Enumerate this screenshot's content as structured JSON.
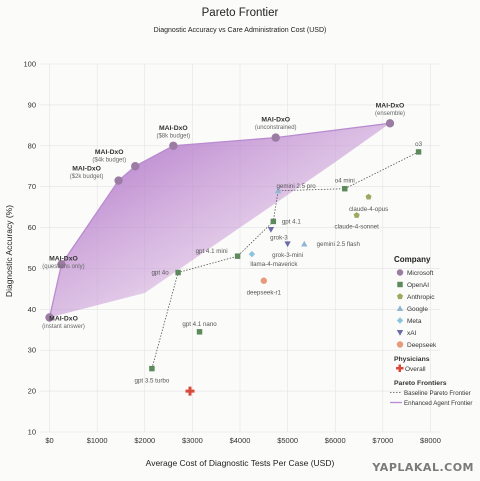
{
  "chart_data": {
    "type": "scatter",
    "title": "Pareto Frontier",
    "subtitle": "Diagnostic Accuracy vs Care Administration Cost (USD)",
    "xlabel": "Average Cost of Diagnostic Tests Per Case (USD)",
    "ylabel": "Diagnostic Accuracy (%)",
    "xlim": [
      -200,
      8200
    ],
    "ylim": [
      10,
      100
    ],
    "xticks": [
      0,
      1000,
      2000,
      3000,
      4000,
      5000,
      6000,
      7000,
      8000
    ],
    "xtick_labels": [
      "$0",
      "$1000",
      "$2000",
      "$3000",
      "$4000",
      "$5000",
      "$6000",
      "$7000",
      "$8000"
    ],
    "yticks": [
      10,
      20,
      30,
      40,
      50,
      60,
      70,
      80,
      90,
      100
    ],
    "grid": true,
    "legend_position": "right",
    "companies": [
      {
        "name": "Microsoft",
        "marker": "circle",
        "color": "#9b7ca3"
      },
      {
        "name": "OpenAI",
        "marker": "square",
        "color": "#5c8a5c"
      },
      {
        "name": "Anthropic",
        "marker": "pentagon",
        "color": "#a0a85f"
      },
      {
        "name": "Google",
        "marker": "triangle-up",
        "color": "#8fb8ce"
      },
      {
        "name": "Meta",
        "marker": "diamond",
        "color": "#8cc4df"
      },
      {
        "name": "xAI",
        "marker": "triangle-down",
        "color": "#6c6ca8"
      },
      {
        "name": "Deepseek",
        "marker": "circle",
        "color": "#e89a7c"
      }
    ],
    "points": [
      {
        "label": "MAI-DxO",
        "sublabel": "(instant answer)",
        "x": 0,
        "y": 38,
        "company": "Microsoft",
        "bold": true,
        "lx": 14,
        "ly": 3
      },
      {
        "label": "MAI-DxO",
        "sublabel": "(questions only)",
        "x": 250,
        "y": 51,
        "company": "Microsoft",
        "bold": true,
        "lx": 2,
        "ly": -4
      },
      {
        "label": "MAI-DxO",
        "sublabel": "($2k budget)",
        "x": 1450,
        "y": 71.5,
        "company": "Microsoft",
        "bold": true,
        "lx": -32,
        "ly": -10
      },
      {
        "label": "MAI-DxO",
        "sublabel": "($4k budget)",
        "x": 1800,
        "y": 75,
        "company": "Microsoft",
        "bold": true,
        "lx": -26,
        "ly": -12
      },
      {
        "label": "MAI-DxO",
        "sublabel": "($8k budget)",
        "x": 2600,
        "y": 80,
        "company": "Microsoft",
        "bold": true,
        "lx": 0,
        "ly": -16
      },
      {
        "label": "MAI-DxO",
        "sublabel": "(unconstrained)",
        "x": 4750,
        "y": 82,
        "company": "Microsoft",
        "bold": true,
        "lx": 0,
        "ly": -16
      },
      {
        "label": "MAI-DxO",
        "sublabel": "(ensemble)",
        "x": 7150,
        "y": 85.5,
        "company": "Microsoft",
        "bold": true,
        "lx": 0,
        "ly": -16
      },
      {
        "label": "gpt 3.5 turbo",
        "x": 2150,
        "y": 25.5,
        "company": "OpenAI",
        "lx": 0,
        "ly": 12
      },
      {
        "label": "gpt 4o",
        "x": 2700,
        "y": 49,
        "company": "OpenAI",
        "lx": -18,
        "ly": 0
      },
      {
        "label": "gpt 4.1 nano",
        "x": 3150,
        "y": 34.5,
        "company": "OpenAI",
        "lx": 0,
        "ly": -8
      },
      {
        "label": "gpt 4.1 mini",
        "x": 3950,
        "y": 53,
        "company": "OpenAI",
        "lx": -26,
        "ly": -5
      },
      {
        "label": "gpt 4.1",
        "x": 4700,
        "y": 61.5,
        "company": "OpenAI",
        "lx": 18,
        "ly": 0
      },
      {
        "label": "o4 mini",
        "x": 6200,
        "y": 69.5,
        "company": "OpenAI",
        "lx": 0,
        "ly": -8
      },
      {
        "label": "o3",
        "x": 7750,
        "y": 78.5,
        "company": "OpenAI",
        "lx": 0,
        "ly": -8
      },
      {
        "label": "claude-4-opus",
        "x": 6700,
        "y": 67.5,
        "company": "Anthropic",
        "lx": 0,
        "ly": 12
      },
      {
        "label": "claude-4-sonnet",
        "x": 6450,
        "y": 63,
        "company": "Anthropic",
        "lx": 0,
        "ly": 11
      },
      {
        "label": "gemini 2.5 pro",
        "x": 4800,
        "y": 69,
        "company": "Google",
        "lx": 18,
        "ly": -5
      },
      {
        "label": "gemini 2.5 flash",
        "x": 5350,
        "y": 56,
        "company": "Google",
        "lx": 34,
        "ly": 0
      },
      {
        "label": "llama-4-maverick",
        "x": 4250,
        "y": 53.5,
        "company": "Meta",
        "lx": 22,
        "ly": 10
      },
      {
        "label": "grok-3",
        "x": 4650,
        "y": 59.5,
        "company": "xAI",
        "lx": 8,
        "ly": 8
      },
      {
        "label": "grok-3-mini",
        "x": 5000,
        "y": 56,
        "company": "xAI",
        "lx": 0,
        "ly": 11
      },
      {
        "label": "deepseek-r1",
        "x": 4500,
        "y": 47,
        "company": "Deepseek",
        "lx": 0,
        "ly": 12
      }
    ],
    "physicians": {
      "label": "Overall",
      "x": 2950,
      "y": 20,
      "color": "#d94a3a"
    },
    "baseline_frontier": [
      [
        2150,
        25.5
      ],
      [
        2700,
        49
      ],
      [
        3950,
        53
      ],
      [
        4700,
        61.5
      ],
      [
        4800,
        69
      ],
      [
        6200,
        69.5
      ],
      [
        7750,
        78.5
      ]
    ],
    "enhanced_frontier": [
      [
        0,
        38
      ],
      [
        250,
        51
      ],
      [
        1450,
        71.5
      ],
      [
        1800,
        75
      ],
      [
        2600,
        80
      ],
      [
        4750,
        82
      ],
      [
        7150,
        85.5
      ]
    ],
    "legend": {
      "company_title": "Company",
      "physicians_title": "Physicians",
      "physicians_label": "Overall",
      "frontiers_title": "Pareto Frontiers",
      "baseline_label": "Baseline Pareto Frontier",
      "enhanced_label": "Enhanced Agent Frontier"
    }
  },
  "watermark": "YAPLAKAL.COM"
}
